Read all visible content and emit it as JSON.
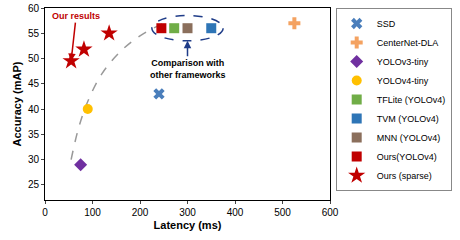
{
  "chart_data": {
    "type": "scatter",
    "x_label": "Latency (ms)",
    "y_label": "Accuracy (mAP)",
    "xlim": [
      0,
      600
    ],
    "xticks": [
      0,
      100,
      200,
      300,
      400,
      500,
      600
    ],
    "ylim": [
      22,
      60
    ],
    "yticks": [
      25,
      30,
      35,
      40,
      45,
      50,
      55,
      60
    ],
    "grid": false,
    "legend": "right",
    "series": [
      {
        "type": "line",
        "line_style": "dashed",
        "color": "#999999",
        "x": [
          55,
          70,
          90,
          120,
          160,
          200,
          250
        ],
        "y": [
          30,
          36,
          41.5,
          47,
          51.5,
          54.5,
          57
        ]
      },
      {
        "name": "SSD",
        "marker": "x",
        "color": "#4a7ebb",
        "x": [
          240
        ],
        "y": [
          43
        ]
      },
      {
        "name": "CenterNet-DLA",
        "marker": "cross",
        "color": "#f4a261",
        "x": [
          525
        ],
        "y": [
          57
        ]
      },
      {
        "name": "YOLOv3-tiny",
        "marker": "diamond",
        "color": "#7030a0",
        "x": [
          75
        ],
        "y": [
          29
        ]
      },
      {
        "name": "YOLOv4-tiny",
        "marker": "circle",
        "color": "#ffc000",
        "x": [
          90
        ],
        "y": [
          40
        ]
      },
      {
        "name": "TFLite (YOLOv4)",
        "marker": "square",
        "color": "#70ad47",
        "x": [
          272
        ],
        "y": [
          56
        ]
      },
      {
        "name": "TVM (YOLOv4)",
        "marker": "square",
        "color": "#2e75b6",
        "x": [
          350
        ],
        "y": [
          56
        ]
      },
      {
        "name": "MNN (YOLOv4)",
        "marker": "square",
        "color": "#8b6f5c",
        "x": [
          300
        ],
        "y": [
          56
        ]
      },
      {
        "name": "Ours(YOLOv4)",
        "marker": "square",
        "color": "#c00000",
        "x": [
          245
        ],
        "y": [
          56
        ]
      },
      {
        "name": "Ours (sparse)",
        "marker": "star",
        "color": "#c00000",
        "x": [
          55,
          82,
          135
        ],
        "y": [
          49.5,
          51.8,
          55
        ]
      }
    ],
    "annotations": [
      {
        "text": "Our results",
        "x": 55,
        "y": 49.5,
        "color": "#c00000"
      },
      {
        "text": "Comparison with\nother frameworks",
        "x": 300,
        "y": 53.5,
        "color": "#1f3c88"
      }
    ]
  }
}
